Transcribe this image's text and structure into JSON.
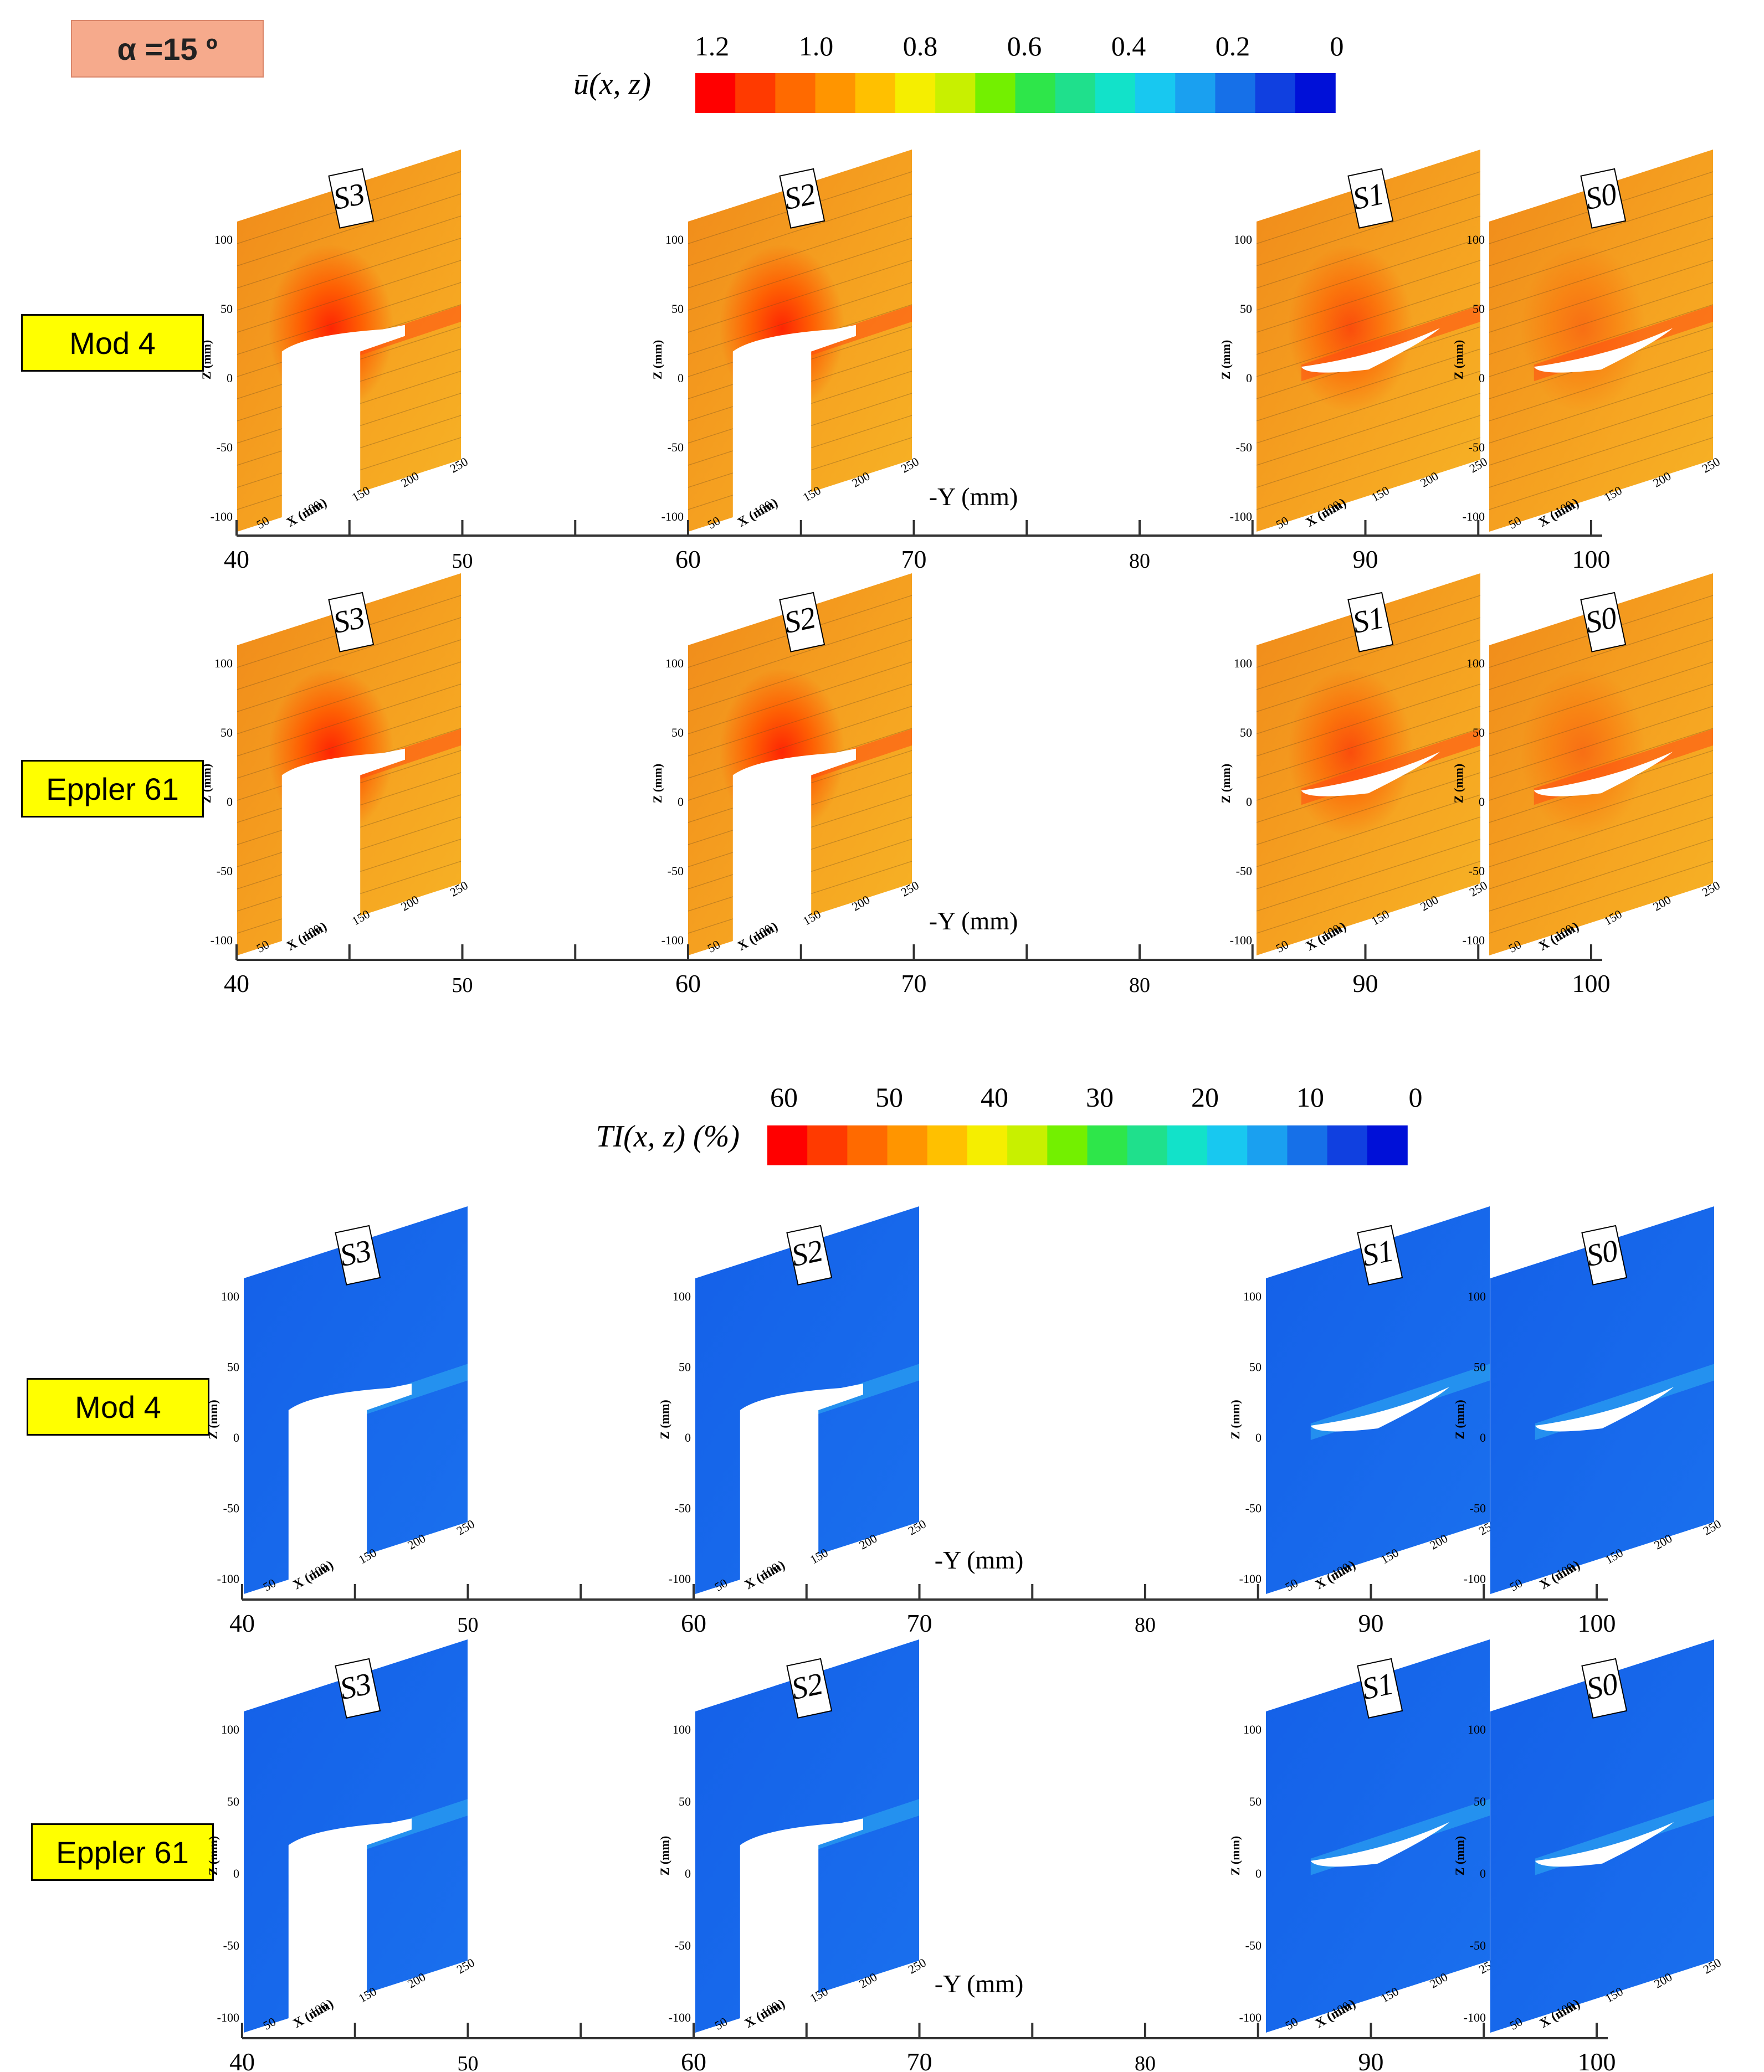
{
  "angle_label": "α =15 º",
  "row_labels": [
    "Mod 4",
    "Eppler 61",
    "Mod 4",
    "Eppler 61"
  ],
  "colors": {
    "badge_bg": "#f6aa8c",
    "label_bg": "#ffff00",
    "colormap": [
      "#ff0000",
      "#ff3a00",
      "#ff6a00",
      "#ff9500",
      "#ffc000",
      "#f5ee00",
      "#c8f000",
      "#73f000",
      "#2ee64a",
      "#1fe08c",
      "#12e2c9",
      "#18c8f0",
      "#1aa0f0",
      "#1670e8",
      "#1040e0",
      "#0010d8"
    ]
  },
  "chart_data": [
    {
      "type": "heatmap",
      "title": "",
      "variable_label": "ū(x, z)",
      "colorbar_ticks": [
        "1.2",
        "1.0",
        "0.8",
        "0.6",
        "0.4",
        "0.2",
        "0"
      ],
      "clim": [
        0,
        1.2
      ],
      "xlabel": "-Y (mm)",
      "x_ticks": [
        "40",
        "50",
        "60",
        "70",
        "80",
        "90",
        "100"
      ],
      "xlim": [
        40,
        100
      ],
      "inner_axes": {
        "xlabel": "X (mm)",
        "zlabel": "Z (mm)",
        "x_ticks": [
          "50",
          "100",
          "150",
          "200",
          "250"
        ],
        "z_ticks": [
          "-100",
          "-50",
          "0",
          "50",
          "100"
        ]
      },
      "planes": [
        {
          "name": "S3",
          "y": 40
        },
        {
          "name": "S2",
          "y": 60
        },
        {
          "name": "S1",
          "y": 90
        },
        {
          "name": "S0",
          "y": 100
        }
      ],
      "rows": [
        "Mod 4",
        "Eppler 61"
      ],
      "background_value": 0.85
    },
    {
      "type": "heatmap",
      "title": "",
      "variable_label": "TI(x, z) (%)",
      "colorbar_ticks": [
        "60",
        "50",
        "40",
        "30",
        "20",
        "10",
        "0"
      ],
      "clim": [
        0,
        60
      ],
      "xlabel": "-Y (mm)",
      "x_ticks": [
        "40",
        "50",
        "60",
        "70",
        "80",
        "90",
        "100"
      ],
      "xlim": [
        40,
        100
      ],
      "inner_axes": {
        "xlabel": "X (mm)",
        "zlabel": "Z (mm)",
        "x_ticks": [
          "50",
          "100",
          "150",
          "200",
          "250"
        ],
        "z_ticks": [
          "-100",
          "-50",
          "0",
          "50",
          "100"
        ]
      },
      "planes": [
        {
          "name": "S3",
          "y": 40
        },
        {
          "name": "S2",
          "y": 60
        },
        {
          "name": "S1",
          "y": 90
        },
        {
          "name": "S0",
          "y": 100
        }
      ],
      "rows": [
        "Mod 4",
        "Eppler 61"
      ],
      "background_value": 8
    }
  ]
}
